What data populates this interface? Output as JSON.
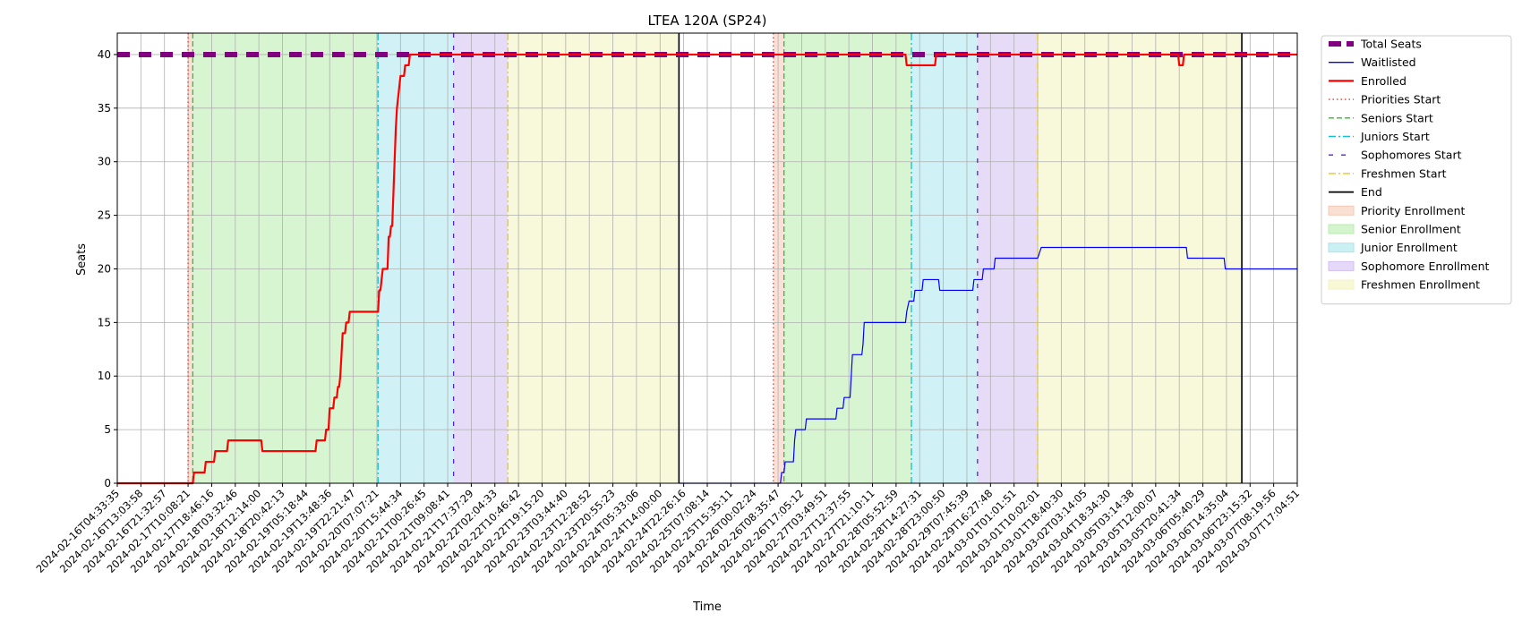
{
  "chart_data": {
    "type": "line",
    "title": "LTEA 120A (SP24)",
    "xlabel": "Time",
    "ylabel": "Seats",
    "ylim": [
      0,
      42
    ],
    "yticks": [
      0,
      5,
      10,
      15,
      20,
      25,
      30,
      35,
      40
    ],
    "xlim": [
      0,
      100
    ],
    "grid": true,
    "legend_placement": "outside-right",
    "x_ticks": [
      {
        "x": 0.0,
        "label": "2024-02-16T04:33:35"
      },
      {
        "x": 2.0,
        "label": "2024-02-16T13:03:58"
      },
      {
        "x": 4.0,
        "label": "2024-02-16T21:32:57"
      },
      {
        "x": 6.0,
        "label": "2024-02-17T10:08:21"
      },
      {
        "x": 8.0,
        "label": "2024-02-17T18:46:16"
      },
      {
        "x": 10.0,
        "label": "2024-02-18T03:32:46"
      },
      {
        "x": 12.0,
        "label": "2024-02-18T12:14:00"
      },
      {
        "x": 14.0,
        "label": "2024-02-18T20:42:13"
      },
      {
        "x": 16.0,
        "label": "2024-02-19T05:18:44"
      },
      {
        "x": 18.0,
        "label": "2024-02-19T13:48:36"
      },
      {
        "x": 20.0,
        "label": "2024-02-19T22:21:47"
      },
      {
        "x": 22.0,
        "label": "2024-02-20T07:07:21"
      },
      {
        "x": 24.0,
        "label": "2024-02-20T15:44:34"
      },
      {
        "x": 26.0,
        "label": "2024-02-21T00:26:45"
      },
      {
        "x": 28.0,
        "label": "2024-02-21T09:08:41"
      },
      {
        "x": 30.0,
        "label": "2024-02-21T17:37:29"
      },
      {
        "x": 32.0,
        "label": "2024-02-22T02:04:33"
      },
      {
        "x": 34.0,
        "label": "2024-02-22T10:46:42"
      },
      {
        "x": 36.0,
        "label": "2024-02-22T19:15:20"
      },
      {
        "x": 38.0,
        "label": "2024-02-23T03:44:40"
      },
      {
        "x": 40.0,
        "label": "2024-02-23T12:28:52"
      },
      {
        "x": 42.0,
        "label": "2024-02-23T20:55:23"
      },
      {
        "x": 44.0,
        "label": "2024-02-24T05:33:06"
      },
      {
        "x": 46.0,
        "label": "2024-02-24T14:00:00"
      },
      {
        "x": 48.0,
        "label": "2024-02-24T22:26:16"
      },
      {
        "x": 50.0,
        "label": "2024-02-25T07:08:14"
      },
      {
        "x": 52.0,
        "label": "2024-02-25T15:35:11"
      },
      {
        "x": 54.0,
        "label": "2024-02-26T00:02:24"
      },
      {
        "x": 56.0,
        "label": "2024-02-26T08:35:47"
      },
      {
        "x": 58.0,
        "label": "2024-02-26T17:05:12"
      },
      {
        "x": 60.0,
        "label": "2024-02-27T03:49:51"
      },
      {
        "x": 62.0,
        "label": "2024-02-27T12:37:55"
      },
      {
        "x": 64.0,
        "label": "2024-02-27T21:10:11"
      },
      {
        "x": 66.0,
        "label": "2024-02-28T05:52:59"
      },
      {
        "x": 68.0,
        "label": "2024-02-28T14:27:31"
      },
      {
        "x": 70.0,
        "label": "2024-02-28T23:00:50"
      },
      {
        "x": 72.0,
        "label": "2024-02-29T07:45:39"
      },
      {
        "x": 74.0,
        "label": "2024-02-29T16:27:48"
      },
      {
        "x": 76.0,
        "label": "2024-03-01T01:01:51"
      },
      {
        "x": 78.0,
        "label": "2024-03-01T10:02:01"
      },
      {
        "x": 80.0,
        "label": "2024-03-01T18:40:30"
      },
      {
        "x": 82.0,
        "label": "2024-03-02T03:14:05"
      },
      {
        "x": 84.0,
        "label": "2024-03-04T18:34:30"
      },
      {
        "x": 86.0,
        "label": "2024-03-05T03:14:38"
      },
      {
        "x": 88.0,
        "label": "2024-03-05T12:00:07"
      },
      {
        "x": 90.0,
        "label": "2024-03-05T20:41:34"
      },
      {
        "x": 92.0,
        "label": "2024-03-06T05:40:29"
      },
      {
        "x": 94.0,
        "label": "2024-03-06T14:35:04"
      },
      {
        "x": 96.0,
        "label": "2024-03-06T23:15:32"
      },
      {
        "x": 98.0,
        "label": "2024-03-07T08:19:56"
      },
      {
        "x": 100.0,
        "label": "2024-03-07T17:04:51"
      }
    ],
    "spans": [
      {
        "name": "Priority Enrollment",
        "color": "#f6c9b6",
        "from": 6.0,
        "to": 6.4
      },
      {
        "name": "Senior Enrollment",
        "color": "#b8ecad",
        "from": 6.4,
        "to": 22.1
      },
      {
        "name": "Junior Enrollment",
        "color": "#a9e6ec",
        "from": 22.1,
        "to": 28.5
      },
      {
        "name": "Sophomore Enrollment",
        "color": "#d3bff2",
        "from": 28.5,
        "to": 33.1
      },
      {
        "name": "Freshmen Enrollment",
        "color": "#f3f3bc",
        "from": 33.1,
        "to": 47.6
      },
      {
        "name": "Priority Enrollment",
        "color": "#f6c9b6",
        "from": 55.6,
        "to": 56.5
      },
      {
        "name": "Senior Enrollment",
        "color": "#b8ecad",
        "from": 56.5,
        "to": 67.3
      },
      {
        "name": "Junior Enrollment",
        "color": "#a9e6ec",
        "from": 67.3,
        "to": 72.9
      },
      {
        "name": "Sophomore Enrollment",
        "color": "#d3bff2",
        "from": 72.9,
        "to": 78.0
      },
      {
        "name": "Freshmen Enrollment",
        "color": "#f3f3bc",
        "from": 78.0,
        "to": 95.3
      }
    ],
    "vlines": [
      {
        "name": "Priorities Start",
        "color": "#e8382a",
        "style": "dotted",
        "x": [
          6.0,
          55.6
        ]
      },
      {
        "name": "Seniors Start",
        "color": "#2fbf2f",
        "style": "dashed",
        "x": [
          6.4,
          56.5
        ]
      },
      {
        "name": "Juniors Start",
        "color": "#17becf",
        "style": "dashdot",
        "x": [
          22.1,
          67.3
        ]
      },
      {
        "name": "Sophomores Start",
        "color": "#5a20d8",
        "style": "loosedash",
        "x": [
          28.5,
          72.9
        ]
      },
      {
        "name": "Freshmen Start",
        "color": "#e6c820",
        "style": "dashdot",
        "x": [
          33.1,
          78.0
        ]
      },
      {
        "name": "End",
        "color": "#000000",
        "style": "solid",
        "x": [
          47.6,
          95.3
        ]
      }
    ],
    "series": [
      {
        "name": "Total Seats",
        "color": "#800080",
        "style": "thick-dash",
        "points": [
          [
            0,
            40
          ],
          [
            100,
            40
          ]
        ]
      },
      {
        "name": "Waitlisted",
        "color": "#0000ff",
        "style": "thin",
        "points": [
          [
            47.6,
            0
          ],
          [
            56.2,
            0
          ],
          [
            56.3,
            1
          ],
          [
            56.5,
            1
          ],
          [
            56.6,
            2
          ],
          [
            57.3,
            2
          ],
          [
            57.4,
            4
          ],
          [
            57.5,
            5
          ],
          [
            58.3,
            5
          ],
          [
            58.4,
            6
          ],
          [
            60.9,
            6
          ],
          [
            61.0,
            7
          ],
          [
            61.5,
            7
          ],
          [
            61.6,
            8
          ],
          [
            62.1,
            8
          ],
          [
            62.2,
            10
          ],
          [
            62.3,
            12
          ],
          [
            63.1,
            12
          ],
          [
            63.2,
            13
          ],
          [
            63.3,
            15
          ],
          [
            66.8,
            15
          ],
          [
            66.9,
            16
          ],
          [
            67.1,
            17
          ],
          [
            67.5,
            17
          ],
          [
            67.6,
            18
          ],
          [
            68.2,
            18
          ],
          [
            68.3,
            19
          ],
          [
            69.6,
            19
          ],
          [
            69.7,
            18
          ],
          [
            72.5,
            18
          ],
          [
            72.6,
            19
          ],
          [
            73.3,
            19
          ],
          [
            73.4,
            20
          ],
          [
            74.3,
            20
          ],
          [
            74.4,
            21
          ],
          [
            78.0,
            21
          ],
          [
            78.3,
            22
          ],
          [
            90.6,
            22
          ],
          [
            90.7,
            21
          ],
          [
            93.8,
            21
          ],
          [
            93.9,
            20
          ],
          [
            100,
            20
          ]
        ]
      },
      {
        "name": "Enrolled",
        "color": "#ff0000",
        "style": "thick",
        "points": [
          [
            0,
            0
          ],
          [
            6.4,
            0
          ],
          [
            6.5,
            1
          ],
          [
            7.4,
            1
          ],
          [
            7.5,
            2
          ],
          [
            8.2,
            2
          ],
          [
            8.3,
            3
          ],
          [
            9.3,
            3
          ],
          [
            9.4,
            4
          ],
          [
            12.2,
            4
          ],
          [
            12.3,
            3
          ],
          [
            16.8,
            3
          ],
          [
            16.9,
            4
          ],
          [
            17.6,
            4
          ],
          [
            17.7,
            5
          ],
          [
            17.9,
            5
          ],
          [
            18.0,
            7
          ],
          [
            18.3,
            7
          ],
          [
            18.4,
            8
          ],
          [
            18.6,
            8
          ],
          [
            18.7,
            9
          ],
          [
            18.8,
            9
          ],
          [
            18.9,
            10
          ],
          [
            19.0,
            12
          ],
          [
            19.1,
            14
          ],
          [
            19.3,
            14
          ],
          [
            19.4,
            15
          ],
          [
            19.6,
            15
          ],
          [
            19.7,
            16
          ],
          [
            22.1,
            16
          ],
          [
            22.2,
            18
          ],
          [
            22.3,
            18
          ],
          [
            22.5,
            20
          ],
          [
            22.9,
            20
          ],
          [
            23.0,
            23
          ],
          [
            23.1,
            23
          ],
          [
            23.2,
            24
          ],
          [
            23.3,
            24
          ],
          [
            23.4,
            27
          ],
          [
            23.5,
            30
          ],
          [
            23.6,
            33
          ],
          [
            23.7,
            35
          ],
          [
            23.8,
            36
          ],
          [
            23.9,
            37
          ],
          [
            24.0,
            38
          ],
          [
            24.3,
            38
          ],
          [
            24.4,
            39
          ],
          [
            24.7,
            39
          ],
          [
            24.8,
            40
          ],
          [
            47.6,
            40
          ],
          [
            56.2,
            40
          ],
          [
            66.8,
            40
          ],
          [
            66.9,
            39
          ],
          [
            69.3,
            39
          ],
          [
            69.4,
            40
          ],
          [
            89.9,
            40
          ],
          [
            90.0,
            39
          ],
          [
            90.3,
            39
          ],
          [
            90.4,
            40
          ],
          [
            100,
            40
          ]
        ]
      }
    ],
    "legend": [
      {
        "label": "Total Seats",
        "kind": "line",
        "color": "#800080",
        "style": "thick-dash"
      },
      {
        "label": "Waitlisted",
        "kind": "line",
        "color": "#0000ff",
        "style": "thin"
      },
      {
        "label": "Enrolled",
        "kind": "line",
        "color": "#ff0000",
        "style": "thick"
      },
      {
        "label": "Priorities Start",
        "kind": "line",
        "color": "#e8382a",
        "style": "dotted"
      },
      {
        "label": "Seniors Start",
        "kind": "line",
        "color": "#2fbf2f",
        "style": "dashed"
      },
      {
        "label": "Juniors Start",
        "kind": "line",
        "color": "#17becf",
        "style": "dashdot"
      },
      {
        "label": "Sophomores Start",
        "kind": "line",
        "color": "#5a20d8",
        "style": "loosedash"
      },
      {
        "label": "Freshmen Start",
        "kind": "line",
        "color": "#e6c820",
        "style": "dashdot"
      },
      {
        "label": "End",
        "kind": "line",
        "color": "#000000",
        "style": "solid"
      },
      {
        "label": "Priority Enrollment",
        "kind": "patch",
        "color": "#f6c9b6"
      },
      {
        "label": "Senior Enrollment",
        "kind": "patch",
        "color": "#b8ecad"
      },
      {
        "label": "Junior Enrollment",
        "kind": "patch",
        "color": "#a9e6ec"
      },
      {
        "label": "Sophomore Enrollment",
        "kind": "patch",
        "color": "#d3bff2"
      },
      {
        "label": "Freshmen Enrollment",
        "kind": "patch",
        "color": "#f3f3bc"
      }
    ]
  }
}
